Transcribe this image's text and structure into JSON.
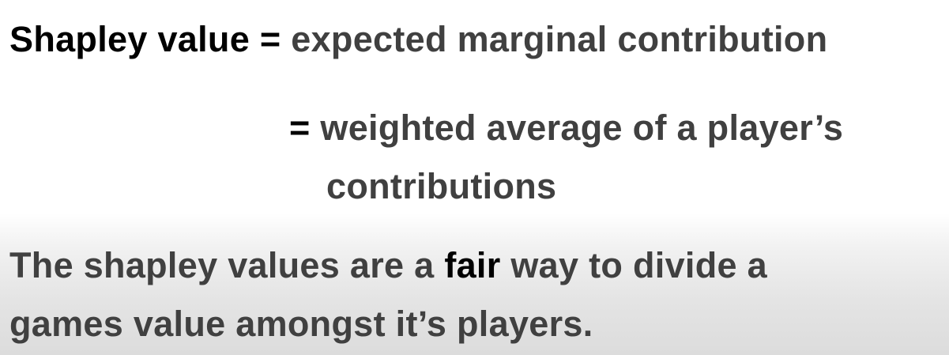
{
  "definition": {
    "term": "Shapley value",
    "eq1": "=",
    "def1": "expected marginal contribution",
    "eq2": "=",
    "def2_line1": "weighted average of a player’s",
    "def2_line2": "contributions"
  },
  "statement": {
    "part1": "The shapley values are a",
    "emphasis": "fair",
    "part2": "way to divide a",
    "line2": "games value amongst it’s players."
  },
  "colors": {
    "text_dark": "#000000",
    "text_gray": "#404040",
    "background_top": "#ffffff",
    "background_bottom": "#dcdcdc"
  }
}
